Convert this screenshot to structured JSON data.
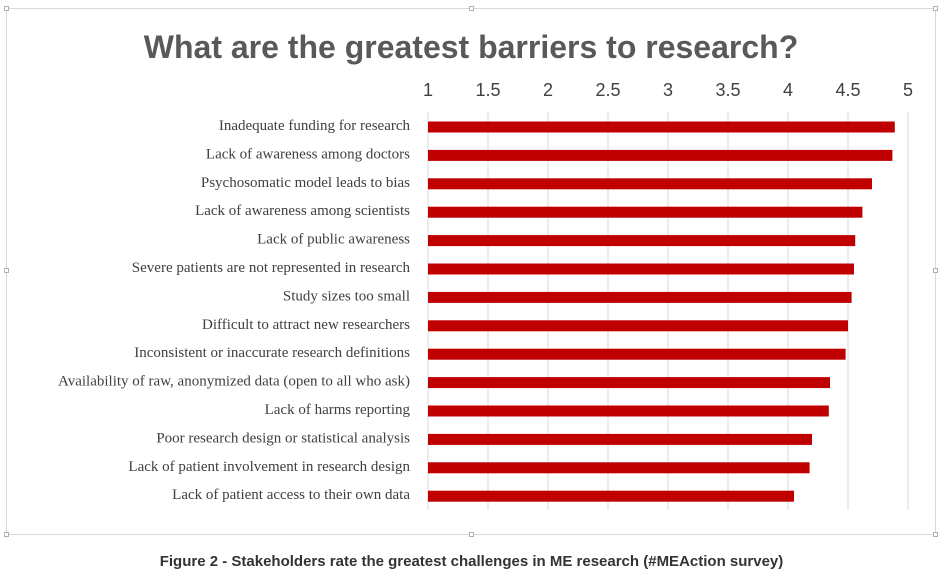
{
  "caption": "Figure 2 - Stakeholders rate the greatest challenges in ME research (#MEAction survey)",
  "colors": {
    "bar": "#c00000",
    "grid": "#d9d9d9",
    "title": "#595959",
    "text": "#404040"
  },
  "chart_data": {
    "type": "bar",
    "orientation": "horizontal",
    "title": "What are the greatest barriers to research?",
    "xlabel": "",
    "ylabel": "",
    "xlim": [
      1,
      5
    ],
    "ticks": [
      "1",
      "1.5",
      "2",
      "2.5",
      "3",
      "3.5",
      "4",
      "4.5",
      "5"
    ],
    "tick_values": [
      1,
      1.5,
      2,
      2.5,
      3,
      3.5,
      4,
      4.5,
      5
    ],
    "axis_position": "top",
    "grid": true,
    "legend": "none",
    "categories": [
      "Inadequate funding for research",
      "Lack of awareness among doctors",
      "Psychosomatic model leads to bias",
      "Lack of awareness among scientists",
      "Lack of public awareness",
      "Severe patients are not represented in research",
      "Study sizes too small",
      "Difficult to attract new researchers",
      "Inconsistent or inaccurate research definitions",
      "Availability of raw, anonymized data (open to all who ask)",
      "Lack of harms reporting",
      "Poor research design or statistical analysis",
      "Lack of patient involvement in research design",
      "Lack of patient access to their own data"
    ],
    "values": [
      4.89,
      4.87,
      4.7,
      4.62,
      4.56,
      4.55,
      4.53,
      4.5,
      4.48,
      4.35,
      4.34,
      4.2,
      4.18,
      4.05
    ]
  }
}
